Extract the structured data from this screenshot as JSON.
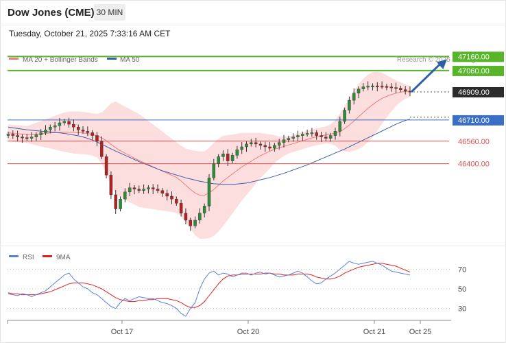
{
  "header": {
    "title": "Dow Jones (CME)",
    "timeframe": "30 MIN",
    "datetime": "Tuesday, October 21, 2025 7:33:16 AM CET"
  },
  "copyright": "Research © 2025 Trading Central",
  "colors": {
    "candle_up": "#2e8b3a",
    "candle_down": "#b22222",
    "ma20": "#f07c7c",
    "bollinger_fill": "#fdd8d8",
    "ma50": "#3a5ea8",
    "resistance": "#57b52a",
    "support": "#e05050",
    "pivot": "#3b6fc5",
    "price_label": "#2b2b2b",
    "arrow": "#2f5ea8",
    "rsi": "#5b7fdc",
    "rsi_ma": "#e02020"
  },
  "chart_data": [
    {
      "type": "candlestick",
      "legend": [
        {
          "label": "MA 20 + Bollinger Bands",
          "color": "#f07c7c"
        },
        {
          "label": "MA 50",
          "color": "#3a5ea8"
        }
      ],
      "ylim": [
        45820,
        47220
      ],
      "x_ticks": [
        "Oct 17",
        "Oct 20",
        "Oct 21",
        "Oct 25"
      ],
      "levels": [
        {
          "value": 47160.0,
          "label": "47160.00",
          "kind": "resistance"
        },
        {
          "value": 47060.0,
          "label": "47060.00",
          "kind": "resistance"
        },
        {
          "value": 46909.0,
          "label": "46909.00",
          "kind": "last"
        },
        {
          "value": 46710.0,
          "label": "46710.00",
          "kind": "pivot"
        },
        {
          "value": 46560.0,
          "label": "46560.00",
          "kind": "support"
        },
        {
          "value": 46400.0,
          "label": "46400.00",
          "kind": "support"
        }
      ],
      "close": [
        46610,
        46600,
        46590,
        46585,
        46580,
        46590,
        46605,
        46620,
        46640,
        46660,
        46670,
        46690,
        46700,
        46680,
        46660,
        46640,
        46630,
        46620,
        46600,
        46560,
        46450,
        46320,
        46180,
        46080,
        46150,
        46200,
        46230,
        46220,
        46210,
        46220,
        46230,
        46220,
        46210,
        46190,
        46170,
        46150,
        46120,
        46050,
        46000,
        45960,
        46000,
        46050,
        46100,
        46300,
        46400,
        46450,
        46470,
        46420,
        46460,
        46500,
        46520,
        46540,
        46550,
        46540,
        46530,
        46520,
        46510,
        46530,
        46550,
        46570,
        46580,
        46590,
        46600,
        46610,
        46615,
        46620,
        46600,
        46590,
        46580,
        46600,
        46630,
        46700,
        46780,
        46850,
        46900,
        46930,
        46945,
        46950,
        46952,
        46950,
        46948,
        46945,
        46940,
        46935,
        46925,
        46915,
        46909
      ],
      "ma20": [
        46620,
        46615,
        46612,
        46610,
        46608,
        46608,
        46610,
        46612,
        46615,
        46618,
        46620,
        46622,
        46624,
        46624,
        46622,
        46620,
        46618,
        46614,
        46608,
        46598,
        46583,
        46563,
        46538,
        46513,
        46493,
        46475,
        46458,
        46440,
        46423,
        46408,
        46393,
        46378,
        46363,
        46348,
        46333,
        46318,
        46303,
        46278,
        46248,
        46218,
        46193,
        46178,
        46178,
        46193,
        46218,
        46248,
        46278,
        46303,
        46328,
        46353,
        46378,
        46398,
        46418,
        46438,
        46458,
        46473,
        46488,
        46503,
        46513,
        46523,
        46533,
        46543,
        46553,
        46563,
        46573,
        46583,
        46591,
        46598,
        46604,
        46610,
        46618,
        46628,
        46648,
        46673,
        46703,
        46733,
        46763,
        46793,
        46818,
        46843,
        46863,
        46878,
        46890,
        46900,
        46908,
        46912,
        46913
      ],
      "ma50": [
        46660,
        46655,
        46650,
        46645,
        46640,
        46637,
        46634,
        46631,
        46628,
        46625,
        46622,
        46619,
        46615,
        46610,
        46604,
        46598,
        46590,
        46580,
        46568,
        46554,
        46538,
        46522,
        46505,
        46490,
        46475,
        46460,
        46445,
        46430,
        46415,
        46402,
        46389,
        46376,
        46363,
        46350,
        46340,
        46330,
        46320,
        46310,
        46300,
        46292,
        46284,
        46276,
        46270,
        46264,
        46258,
        46256,
        46254,
        46254,
        46254,
        46256,
        46260,
        46264,
        46270,
        46278,
        46286,
        46294,
        46302,
        46312,
        46322,
        46332,
        46344,
        46356,
        46368,
        46380,
        46392,
        46406,
        46420,
        46434,
        46448,
        46462,
        46476,
        46490,
        46504,
        46520,
        46536,
        46552,
        46568,
        46584,
        46600,
        46616,
        46632,
        46648,
        46664,
        46680,
        46694,
        46706,
        46716
      ],
      "bb_width": [
        60,
        60,
        60,
        60,
        60,
        70,
        80,
        90,
        100,
        110,
        120,
        130,
        140,
        145,
        150,
        150,
        150,
        150,
        150,
        155,
        180,
        230,
        290,
        330,
        330,
        330,
        330,
        330,
        330,
        320,
        310,
        300,
        290,
        280,
        270,
        260,
        250,
        250,
        260,
        280,
        300,
        310,
        310,
        320,
        330,
        330,
        320,
        300,
        280,
        260,
        240,
        220,
        200,
        180,
        160,
        140,
        120,
        100,
        80,
        70,
        60,
        60,
        60,
        60,
        60,
        60,
        60,
        60,
        60,
        70,
        90,
        130,
        160,
        190,
        210,
        230,
        240,
        240,
        230,
        210,
        180,
        150,
        120,
        90,
        70,
        50,
        40
      ]
    },
    {
      "type": "line",
      "legend": [
        {
          "label": "RSI",
          "color": "#5b7fdc"
        },
        {
          "label": "9MA",
          "color": "#e02020"
        }
      ],
      "ylim": [
        20,
        80
      ],
      "y_ticks": [
        "70",
        "50",
        "30"
      ],
      "rsi": [
        45,
        44,
        43,
        45,
        44,
        42,
        44,
        46,
        48,
        52,
        56,
        60,
        64,
        66,
        60,
        56,
        52,
        50,
        46,
        44,
        40,
        36,
        32,
        30,
        36,
        40,
        38,
        40,
        42,
        41,
        40,
        40,
        38,
        36,
        35,
        33,
        30,
        25,
        22,
        30,
        36,
        50,
        60,
        66,
        68,
        64,
        66,
        65,
        62,
        64,
        66,
        66,
        64,
        66,
        67,
        65,
        66,
        64,
        62,
        63,
        64,
        66,
        68,
        66,
        62,
        58,
        55,
        56,
        60,
        63,
        66,
        70,
        74,
        78,
        76,
        75,
        76,
        77,
        78,
        76,
        74,
        71,
        68,
        67,
        66,
        65,
        64
      ],
      "ma": [
        46,
        45,
        45,
        44,
        44,
        44,
        44,
        45,
        46,
        47,
        49,
        51,
        53,
        55,
        56,
        56,
        56,
        55,
        54,
        52,
        50,
        47,
        44,
        41,
        39,
        38,
        37,
        37,
        38,
        38,
        39,
        39,
        40,
        40,
        40,
        39,
        38,
        36,
        33,
        31,
        31,
        33,
        37,
        43,
        49,
        55,
        60,
        63,
        64,
        64,
        65,
        65,
        65,
        65,
        65,
        66,
        66,
        65,
        65,
        64,
        64,
        64,
        65,
        65,
        65,
        64,
        62,
        61,
        60,
        60,
        61,
        63,
        66,
        68,
        70,
        72,
        73,
        74,
        75,
        76,
        76,
        75,
        74,
        73,
        71,
        69,
        67
      ]
    }
  ]
}
